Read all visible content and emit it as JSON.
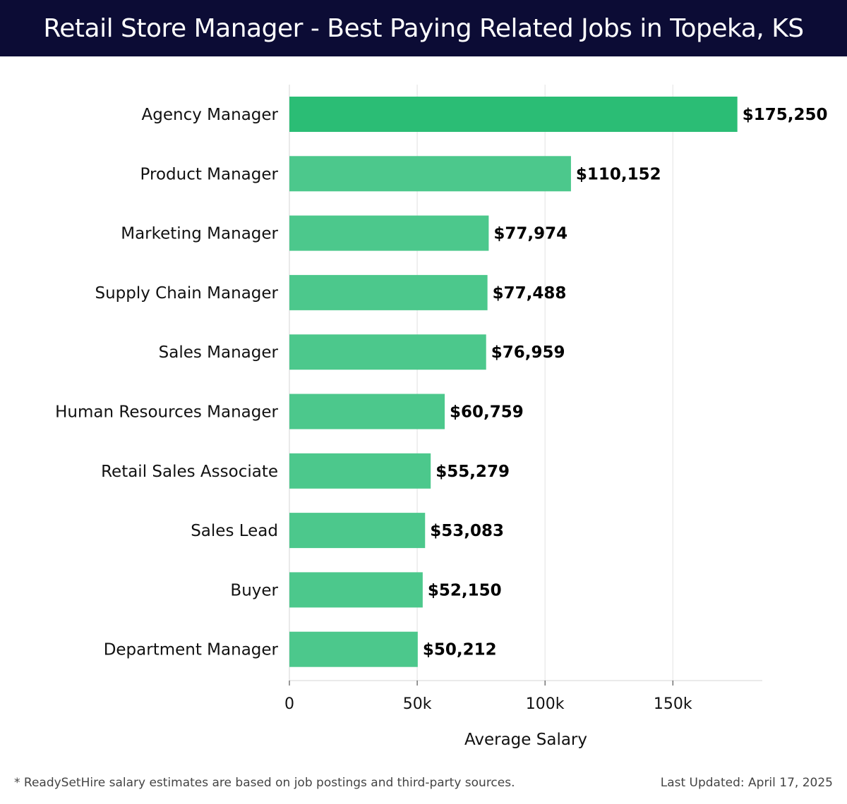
{
  "header": {
    "title": "Retail Store Manager - Best Paying Related Jobs in Topeka, KS"
  },
  "footer": {
    "note": "* ReadySetHire salary estimates are based on job postings and third-party sources.",
    "updated": "Last Updated: April 17, 2025"
  },
  "colors": {
    "header_bg": "#0c0c35",
    "bar_top": "#2bbd75",
    "bar": "#4cc88c",
    "value_text": "#000000"
  },
  "chart_data": {
    "type": "bar",
    "orientation": "horizontal",
    "categories": [
      "Agency Manager",
      "Product Manager",
      "Marketing Manager",
      "Supply Chain Manager",
      "Sales Manager",
      "Human Resources Manager",
      "Retail Sales Associate",
      "Sales Lead",
      "Buyer",
      "Department Manager"
    ],
    "values": [
      175250,
      110152,
      77974,
      77488,
      76959,
      60759,
      55279,
      53083,
      52150,
      50212
    ],
    "value_labels": [
      "$175,250",
      "$110,152",
      "$77,974",
      "$77,488",
      "$76,959",
      "$60,759",
      "$55,279",
      "$53,083",
      "$52,150",
      "$50,212"
    ],
    "xlabel": "Average Salary",
    "ylabel": "",
    "xlim": [
      0,
      185000
    ],
    "x_ticks": [
      0,
      50000,
      100000,
      150000
    ],
    "x_tick_labels": [
      "0",
      "50k",
      "100k",
      "150k"
    ],
    "grid": "vertical"
  }
}
